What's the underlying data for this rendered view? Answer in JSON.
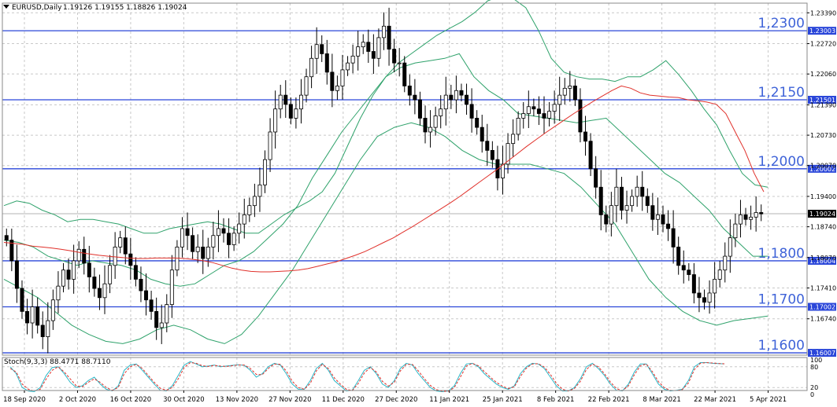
{
  "header": {
    "symbol_label": "EURUSD,Daily",
    "ohlc": "1.19126 1.19155 1.18826 1.19024"
  },
  "stoch_header": "Stoch(9,3,3) 88.4771 88.7110",
  "colors": {
    "background": "#ffffff",
    "grid": "#c8c8c8",
    "level_line": "#2a46d9",
    "level_text": "#3f63d8",
    "ma": "#e0302a",
    "bollinger": "#2fa26b",
    "stoch_main": "#2bb7c7",
    "stoch_signal": "#e0302a",
    "price_box": "#000000"
  },
  "chart_data": [
    {
      "type": "candlestick",
      "title": "EURUSD,Daily",
      "ylim": [
        1.1595,
        1.236
      ],
      "y_ticks": [
        "1.23390",
        "1.22720",
        "1.22060",
        "1.21390",
        "1.20730",
        "1.20070",
        "1.19400",
        "1.18740",
        "1.18070",
        "1.17410",
        "1.16740"
      ],
      "x_ticks": [
        "18 Sep 2020",
        "2 Oct 2020",
        "16 Oct 2020",
        "30 Oct 2020",
        "13 Nov 2020",
        "27 Nov 2020",
        "11 Dec 2020",
        "27 Dec 2020",
        "11 Jan 2021",
        "25 Jan 2021",
        "8 Feb 2021",
        "22 Feb 2021",
        "8 Mar 2021",
        "22 Mar 2021",
        "5 Apr 2021"
      ],
      "levels": [
        {
          "value": 1.23,
          "label": "1,2300",
          "axis_label": "1.23003"
        },
        {
          "value": 1.215,
          "label": "1,2150",
          "axis_label": "1.21501"
        },
        {
          "value": 1.2,
          "label": "1,2000",
          "axis_label": "1.20002"
        },
        {
          "value": 1.18,
          "label": "1,1800",
          "axis_label": "1.18004"
        },
        {
          "value": 1.17,
          "label": "1,1700",
          "axis_label": "1.17002"
        },
        {
          "value": 1.16,
          "label": "1,1600",
          "axis_label": "1.16007"
        }
      ],
      "last_price": {
        "value": 1.19024,
        "label": "1.19024"
      },
      "close_path": [
        1.1845,
        1.18,
        1.174,
        1.169,
        1.1665,
        1.17,
        1.166,
        1.1635,
        1.167,
        1.1715,
        1.1745,
        1.178,
        1.176,
        1.18,
        1.1825,
        1.1795,
        1.1765,
        1.174,
        1.172,
        1.175,
        1.179,
        1.183,
        1.185,
        1.1815,
        1.179,
        1.176,
        1.1735,
        1.1715,
        1.169,
        1.1655,
        1.1665,
        1.1705,
        1.178,
        1.183,
        1.187,
        1.1855,
        1.182,
        1.183,
        1.1805,
        1.183,
        1.1855,
        1.187,
        1.186,
        1.1835,
        1.186,
        1.188,
        1.19,
        1.192,
        1.194,
        1.1965,
        1.202,
        1.208,
        1.213,
        1.216,
        1.214,
        1.211,
        1.213,
        1.216,
        1.22,
        1.224,
        1.227,
        1.225,
        1.221,
        1.217,
        1.218,
        1.2215,
        1.223,
        1.2245,
        1.2265,
        1.2275,
        1.2255,
        1.224,
        1.2285,
        1.231,
        1.226,
        1.223,
        1.223,
        1.218,
        1.216,
        1.215,
        1.211,
        1.208,
        1.209,
        1.2115,
        1.213,
        1.216,
        1.215,
        1.217,
        1.216,
        1.214,
        1.211,
        1.209,
        1.206,
        1.204,
        1.202,
        1.198,
        1.201,
        1.2055,
        1.2075,
        1.211,
        1.212,
        1.2135,
        1.213,
        1.212,
        1.211,
        1.2125,
        1.214,
        1.216,
        1.2175,
        1.218,
        1.215,
        1.208,
        1.206,
        1.2,
        1.196,
        1.19,
        1.188,
        1.192,
        1.196,
        1.191,
        1.192,
        1.194,
        1.196,
        1.194,
        1.192,
        1.189,
        1.19,
        1.188,
        1.187,
        1.183,
        1.179,
        1.178,
        1.177,
        1.173,
        1.172,
        1.171,
        1.173,
        1.176,
        1.178,
        1.181,
        1.185,
        1.188,
        1.19,
        1.189,
        1.1895,
        1.1905,
        1.1902
      ],
      "ma_path": [
        1.184,
        1.1838,
        1.1836,
        1.1832,
        1.183,
        1.1828,
        1.1825,
        1.1822,
        1.1818,
        1.1815,
        1.1812,
        1.181,
        1.1808,
        1.1806,
        1.1805,
        1.1805,
        1.1806,
        1.1806,
        1.1806,
        1.1805,
        1.1803,
        1.18,
        1.1796,
        1.179,
        1.1784,
        1.178,
        1.1777,
        1.1776,
        1.1776,
        1.1777,
        1.1778,
        1.178,
        1.1783,
        1.1788,
        1.1793,
        1.1798,
        1.1805,
        1.1812,
        1.182,
        1.183,
        1.184,
        1.185,
        1.1862,
        1.1874,
        1.1887,
        1.19,
        1.1913,
        1.1926,
        1.194,
        1.1955,
        1.197,
        1.1985,
        1.2,
        1.2016,
        1.2032,
        1.2048,
        1.2063,
        1.2078,
        1.2092,
        1.2106,
        1.212,
        1.2133,
        1.2146,
        1.2158,
        1.217,
        1.218,
        1.2175,
        1.2165,
        1.216,
        1.2158,
        1.2156,
        1.2155,
        1.215,
        1.2148,
        1.2145,
        1.214,
        1.212,
        1.208,
        1.204,
        1.199,
        1.195
      ],
      "boll_upper": [
        1.192,
        1.193,
        1.1925,
        1.191,
        1.19,
        1.1885,
        1.189,
        1.189,
        1.1885,
        1.188,
        1.187,
        1.186,
        1.186,
        1.187,
        1.1875,
        1.188,
        1.1885,
        1.188,
        1.187,
        1.186,
        1.186,
        1.188,
        1.19,
        1.1915,
        1.193,
        1.195,
        1.199,
        1.205,
        1.211,
        1.216,
        1.22,
        1.223,
        1.225,
        1.227,
        1.229,
        1.2305,
        1.232,
        1.234,
        1.2365,
        1.2375,
        1.237,
        1.235,
        1.23,
        1.224,
        1.221,
        1.22,
        1.2195,
        1.2195,
        1.219,
        1.22,
        1.22,
        1.2215,
        1.2235,
        1.2205,
        1.217,
        1.213,
        1.2095,
        1.204,
        1.199,
        1.1965,
        1.196
      ],
      "boll_middle": [
        1.1845,
        1.184,
        1.183,
        1.181,
        1.18,
        1.179,
        1.18,
        1.1795,
        1.179,
        1.178,
        1.176,
        1.175,
        1.1745,
        1.175,
        1.177,
        1.179,
        1.18,
        1.182,
        1.185,
        1.188,
        1.192,
        1.198,
        1.203,
        1.208,
        1.212,
        1.216,
        1.22,
        1.222,
        1.223,
        1.2235,
        1.224,
        1.225,
        1.22,
        1.217,
        1.215,
        1.212,
        1.2115,
        1.211,
        1.2105,
        1.21,
        1.2105,
        1.211,
        1.208,
        1.205,
        1.202,
        1.199,
        1.197,
        1.194,
        1.191,
        1.187,
        1.184,
        1.181,
        1.181
      ],
      "boll_lower": [
        1.176,
        1.174,
        1.172,
        1.169,
        1.166,
        1.164,
        1.1625,
        1.162,
        1.163,
        1.165,
        1.166,
        1.165,
        1.163,
        1.162,
        1.164,
        1.168,
        1.173,
        1.178,
        1.184,
        1.19,
        1.196,
        1.202,
        1.207,
        1.209,
        1.21,
        1.209,
        1.207,
        1.204,
        1.202,
        1.201,
        1.201,
        1.201,
        1.2,
        1.199,
        1.196,
        1.192,
        1.188,
        1.182,
        1.176,
        1.172,
        1.169,
        1.167,
        1.166,
        1.167,
        1.1675,
        1.168
      ],
      "indicators": [
        "Bollinger Bands",
        "Moving Average"
      ]
    },
    {
      "type": "line",
      "title": "Stoch(9,3,3) 88.4771 88.7110",
      "ylim": [
        0,
        100
      ],
      "y_ticks": [
        "100",
        "80",
        "20",
        "0"
      ],
      "series": [
        {
          "name": "main",
          "values": [
            80,
            60,
            20,
            10,
            8,
            20,
            55,
            78,
            80,
            60,
            35,
            20,
            25,
            40,
            50,
            30,
            15,
            10,
            25,
            70,
            85,
            88,
            70,
            50,
            30,
            12,
            10,
            25,
            55,
            85,
            95,
            88,
            80,
            82,
            85,
            80,
            82,
            84,
            86,
            84,
            70,
            50,
            60,
            80,
            90,
            85,
            60,
            30,
            15,
            15,
            40,
            75,
            90,
            70,
            40,
            25,
            10,
            12,
            40,
            70,
            80,
            60,
            30,
            20,
            40,
            75,
            90,
            85,
            60,
            40,
            20,
            10,
            8,
            10,
            25,
            60,
            88,
            90,
            80,
            60,
            45,
            30,
            20,
            15,
            25,
            60,
            80,
            90,
            88,
            75,
            50,
            25,
            10,
            10,
            20,
            45,
            80,
            90,
            75,
            55,
            30,
            12,
            10,
            30,
            65,
            88,
            88,
            60,
            30,
            15,
            10,
            12,
            15,
            40,
            80,
            92,
            92,
            90,
            89,
            88.5
          ]
        },
        {
          "name": "signal",
          "values": [
            75,
            65,
            30,
            15,
            10,
            15,
            45,
            70,
            80,
            65,
            45,
            25,
            22,
            35,
            45,
            35,
            20,
            12,
            20,
            60,
            80,
            87,
            75,
            55,
            35,
            18,
            12,
            20,
            45,
            78,
            92,
            90,
            83,
            81,
            84,
            82,
            81,
            83,
            85,
            85,
            75,
            58,
            57,
            75,
            88,
            87,
            68,
            38,
            20,
            15,
            32,
            68,
            87,
            75,
            48,
            30,
            15,
            11,
            32,
            62,
            78,
            65,
            38,
            24,
            35,
            68,
            87,
            87,
            68,
            46,
            26,
            14,
            9,
            9,
            20,
            50,
            82,
            90,
            83,
            66,
            50,
            35,
            24,
            17,
            22,
            52,
            76,
            88,
            89,
            79,
            58,
            32,
            15,
            10,
            17,
            38,
            72,
            88,
            80,
            60,
            36,
            17,
            11,
            25,
            57,
            83,
            88,
            66,
            37,
            19,
            12,
            11,
            14,
            33,
            72,
            90,
            92,
            91,
            89.5,
            88.7
          ]
        }
      ]
    }
  ]
}
